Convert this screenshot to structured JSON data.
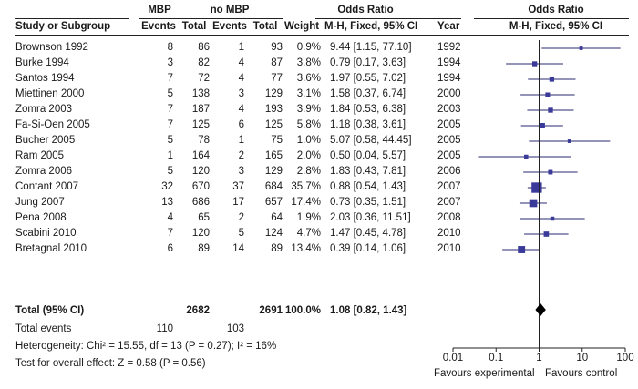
{
  "chart_data": {
    "type": "forest",
    "group_headers": {
      "experimental": "MBP",
      "control": "no MBP",
      "effect": "Odds Ratio",
      "plot": "Odds Ratio"
    },
    "columns": {
      "study": "Study or Subgroup",
      "events_exp": "Events",
      "total_exp": "Total",
      "events_ctl": "Events",
      "total_ctl": "Total",
      "weight": "Weight",
      "effect": "M-H, Fixed, 95% CI",
      "year": "Year",
      "plot": "M-H, Fixed, 95% CI"
    },
    "studies": [
      {
        "study": "Brownson 1992",
        "events_exp": "8",
        "total_exp": "86",
        "events_ctl": "1",
        "total_ctl": "93",
        "weight_text": "0.9%",
        "ci_text": "9.44 [1.15, 77.10]",
        "year": "1992",
        "or": 9.44,
        "lo": 1.15,
        "hi": 77.1,
        "weight": 0.9
      },
      {
        "study": "Burke 1994",
        "events_exp": "3",
        "total_exp": "82",
        "events_ctl": "4",
        "total_ctl": "87",
        "weight_text": "3.8%",
        "ci_text": "0.79 [0.17, 3.63]",
        "year": "1994",
        "or": 0.79,
        "lo": 0.17,
        "hi": 3.63,
        "weight": 3.8
      },
      {
        "study": "Santos 1994",
        "events_exp": "7",
        "total_exp": "72",
        "events_ctl": "4",
        "total_ctl": "77",
        "weight_text": "3.6%",
        "ci_text": "1.97 [0.55, 7.02]",
        "year": "1994",
        "or": 1.97,
        "lo": 0.55,
        "hi": 7.02,
        "weight": 3.6
      },
      {
        "study": "Miettinen 2000",
        "events_exp": "5",
        "total_exp": "138",
        "events_ctl": "3",
        "total_ctl": "129",
        "weight_text": "3.1%",
        "ci_text": "1.58 [0.37, 6.74]",
        "year": "2000",
        "or": 1.58,
        "lo": 0.37,
        "hi": 6.74,
        "weight": 3.1
      },
      {
        "study": "Zomra 2003",
        "events_exp": "7",
        "total_exp": "187",
        "events_ctl": "4",
        "total_ctl": "193",
        "weight_text": "3.9%",
        "ci_text": "1.84 [0.53, 6.38]",
        "year": "2003",
        "or": 1.84,
        "lo": 0.53,
        "hi": 6.38,
        "weight": 3.9
      },
      {
        "study": "Fa-Si-Oen 2005",
        "events_exp": "7",
        "total_exp": "125",
        "events_ctl": "6",
        "total_ctl": "125",
        "weight_text": "5.8%",
        "ci_text": "1.18 [0.38, 3.61]",
        "year": "2005",
        "or": 1.18,
        "lo": 0.38,
        "hi": 3.61,
        "weight": 5.8
      },
      {
        "study": "Bucher 2005",
        "events_exp": "5",
        "total_exp": "78",
        "events_ctl": "1",
        "total_ctl": "75",
        "weight_text": "1.0%",
        "ci_text": "5.07 [0.58, 44.45]",
        "year": "2005",
        "or": 5.07,
        "lo": 0.58,
        "hi": 44.45,
        "weight": 1.0
      },
      {
        "study": "Ram 2005",
        "events_exp": "1",
        "total_exp": "164",
        "events_ctl": "2",
        "total_ctl": "165",
        "weight_text": "2.0%",
        "ci_text": "0.50 [0.04, 5.57]",
        "year": "2005",
        "or": 0.5,
        "lo": 0.04,
        "hi": 5.57,
        "weight": 2.0
      },
      {
        "study": "Zomra 2006",
        "events_exp": "5",
        "total_exp": "120",
        "events_ctl": "3",
        "total_ctl": "129",
        "weight_text": "2.8%",
        "ci_text": "1.83 [0.43, 7.81]",
        "year": "2006",
        "or": 1.83,
        "lo": 0.43,
        "hi": 7.81,
        "weight": 2.8
      },
      {
        "study": "Contant 2007",
        "events_exp": "32",
        "total_exp": "670",
        "events_ctl": "37",
        "total_ctl": "684",
        "weight_text": "35.7%",
        "ci_text": "0.88 [0.54, 1.43]",
        "year": "2007",
        "or": 0.88,
        "lo": 0.54,
        "hi": 1.43,
        "weight": 35.7
      },
      {
        "study": "Jung 2007",
        "events_exp": "13",
        "total_exp": "686",
        "events_ctl": "17",
        "total_ctl": "657",
        "weight_text": "17.4%",
        "ci_text": "0.73 [0.35, 1.51]",
        "year": "2007",
        "or": 0.73,
        "lo": 0.35,
        "hi": 1.51,
        "weight": 17.4
      },
      {
        "study": "Pena 2008",
        "events_exp": "4",
        "total_exp": "65",
        "events_ctl": "2",
        "total_ctl": "64",
        "weight_text": "1.9%",
        "ci_text": "2.03 [0.36, 11.51]",
        "year": "2008",
        "or": 2.03,
        "lo": 0.36,
        "hi": 11.51,
        "weight": 1.9
      },
      {
        "study": "Scabini 2010",
        "events_exp": "7",
        "total_exp": "120",
        "events_ctl": "5",
        "total_ctl": "124",
        "weight_text": "4.7%",
        "ci_text": "1.47 [0.45, 4.78]",
        "year": "2010",
        "or": 1.47,
        "lo": 0.45,
        "hi": 4.78,
        "weight": 4.7
      },
      {
        "study": "Bretagnal 2010",
        "events_exp": "6",
        "total_exp": "89",
        "events_ctl": "14",
        "total_ctl": "89",
        "weight_text": "13.4%",
        "ci_text": "0.39 [0.14, 1.06]",
        "year": "2010",
        "or": 0.39,
        "lo": 0.14,
        "hi": 1.06,
        "weight": 13.4
      }
    ],
    "total": {
      "label": "Total (95% CI)",
      "total_exp": "2682",
      "total_ctl": "2691",
      "weight_text": "100.0%",
      "ci_text": "1.08 [0.82, 1.43]",
      "or": 1.08,
      "lo": 0.82,
      "hi": 1.43
    },
    "total_events": {
      "label": "Total events",
      "exp": "110",
      "ctl": "103"
    },
    "heterogeneity": "Heterogeneity: Chi² = 15.55, df = 13 (P = 0.27); I² = 16%",
    "overall_effect": "Test for overall effect: Z = 0.58 (P = 0.56)",
    "axis": {
      "scale": "log",
      "range": [
        0.01,
        100
      ],
      "ticks": [
        0.01,
        0.1,
        1,
        10,
        100
      ],
      "tick_labels": [
        "0.01",
        "0.1",
        "1",
        "10",
        "100"
      ],
      "left_label": "Favours experimental",
      "right_label": "Favours control"
    },
    "colors": {
      "marker": "#3a3a9a",
      "line": "#2a2a70",
      "diamond": "#000000",
      "text": "#1a1a1a"
    }
  }
}
